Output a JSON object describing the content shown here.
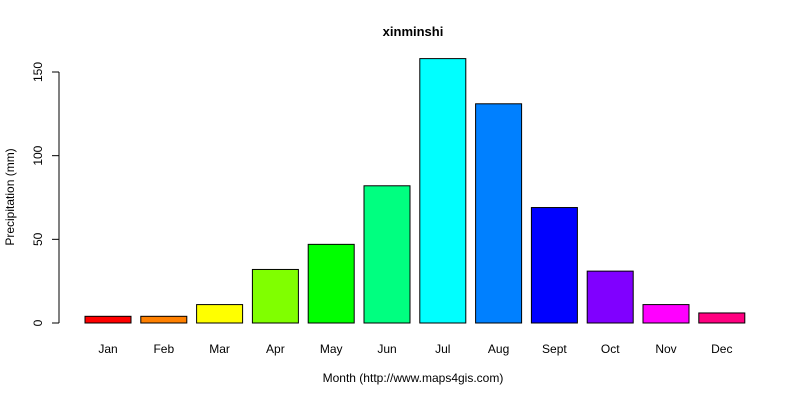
{
  "chart_data": {
    "type": "bar",
    "title": "xinminshi",
    "xlabel": "Month (http://www.maps4gis.com)",
    "ylabel": "Precipitation (mm)",
    "categories": [
      "Jan",
      "Feb",
      "Mar",
      "Apr",
      "May",
      "Jun",
      "Jul",
      "Aug",
      "Sept",
      "Oct",
      "Nov",
      "Dec"
    ],
    "values": [
      4,
      4,
      11,
      32,
      47,
      82,
      158,
      131,
      69,
      31,
      11,
      6
    ],
    "colors": [
      "#FF0000",
      "#FF8000",
      "#FFFF00",
      "#80FF00",
      "#00FF00",
      "#00FF80",
      "#00FFFF",
      "#0080FF",
      "#0000FF",
      "#8000FF",
      "#FF00FF",
      "#FF0080"
    ],
    "yticks": [
      0,
      50,
      100,
      150
    ],
    "ylim": [
      0,
      158
    ],
    "grid": false,
    "legend": "none"
  }
}
